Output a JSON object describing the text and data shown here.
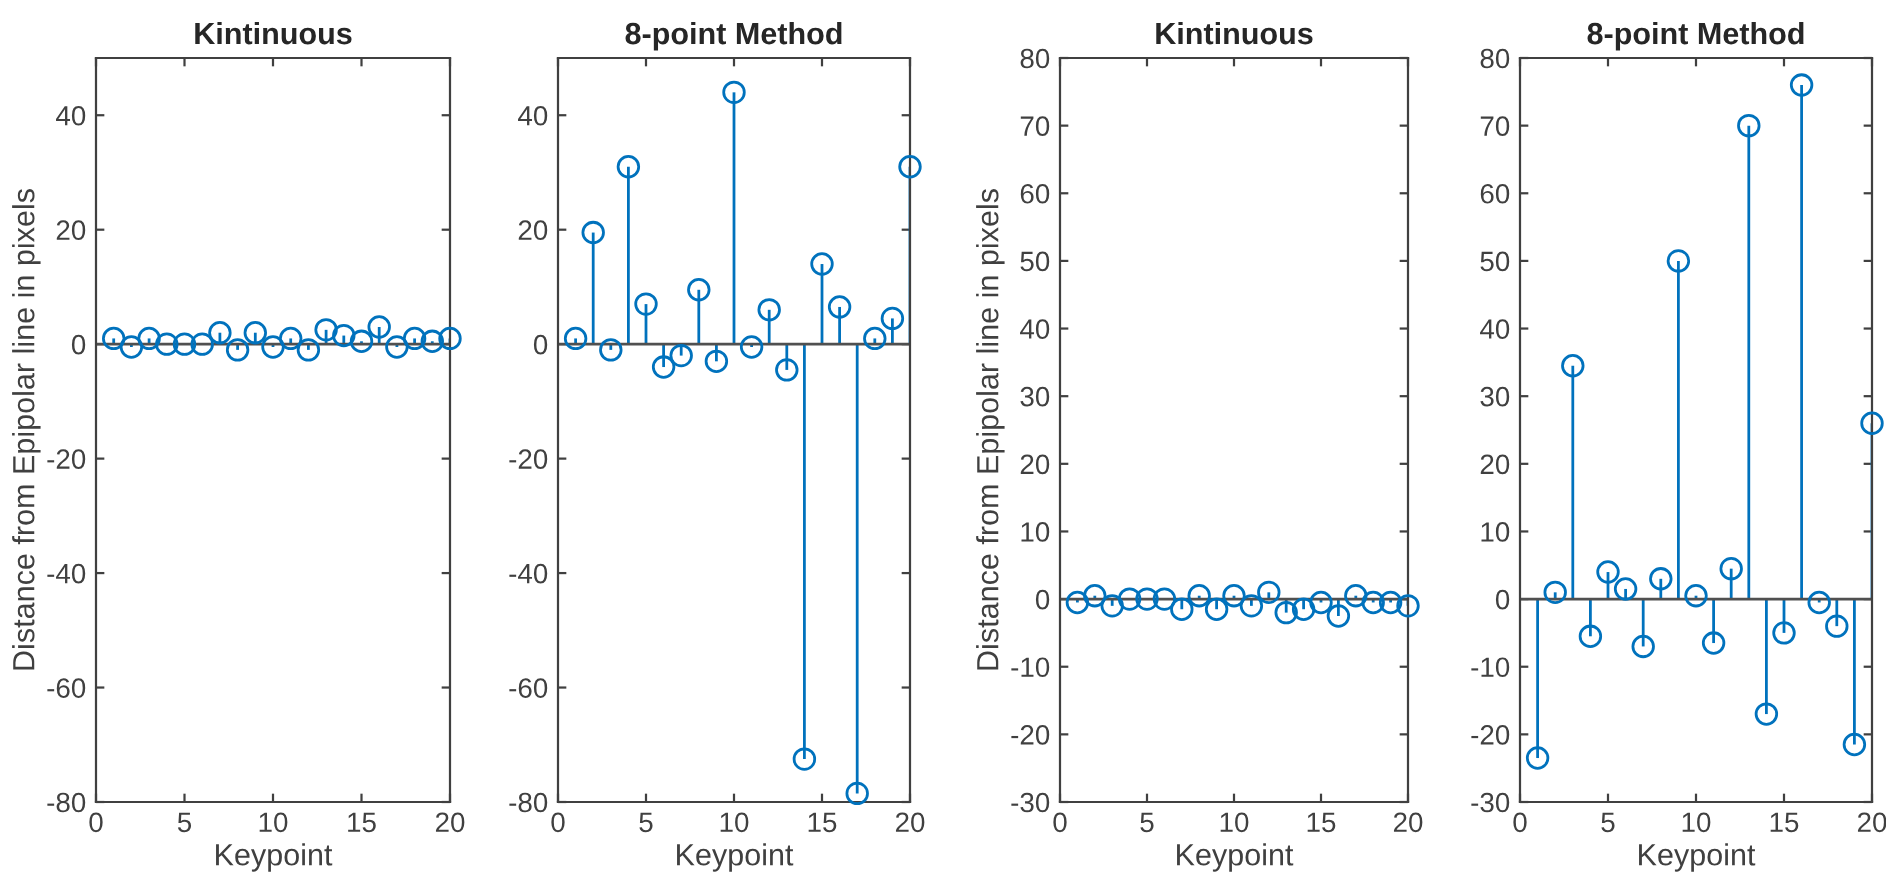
{
  "chart_data": [
    {
      "type": "lollipop",
      "title": "Kintinuous",
      "xlabel": "Keypoint",
      "ylabel": "Distance from Epipolar line in pixels",
      "marker": "circle",
      "x": [
        1,
        2,
        3,
        4,
        5,
        6,
        7,
        8,
        9,
        10,
        11,
        12,
        13,
        14,
        15,
        16,
        17,
        18,
        19,
        20
      ],
      "series": [
        {
          "color": "#0072bd",
          "values": [
            1,
            -0.5,
            1,
            0,
            0,
            0,
            2,
            -1,
            2,
            -0.5,
            1,
            -1,
            2.5,
            1.5,
            0.5,
            3,
            -0.5,
            1,
            0.5,
            1
          ]
        }
      ],
      "xlim": [
        0,
        20
      ],
      "xticks": [
        0,
        5,
        10,
        15,
        20
      ],
      "ylim": [
        -80,
        50
      ],
      "yticks": [
        -80,
        -60,
        -40,
        -20,
        0,
        20,
        40
      ]
    },
    {
      "type": "lollipop",
      "title": "8-point Method",
      "xlabel": "Keypoint",
      "marker": "circle",
      "x": [
        1,
        2,
        3,
        4,
        5,
        6,
        7,
        8,
        9,
        10,
        11,
        12,
        13,
        14,
        15,
        16,
        17,
        18,
        19,
        20
      ],
      "series": [
        {
          "color": "#0072bd",
          "values": [
            1,
            19.5,
            -1,
            31,
            7,
            -4,
            -2,
            9.5,
            -3,
            44,
            -0.5,
            6,
            -4.5,
            -72.5,
            14,
            6.5,
            -78.5,
            1,
            4.5,
            31
          ]
        }
      ],
      "xlim": [
        0,
        20
      ],
      "xticks": [
        0,
        5,
        10,
        15,
        20
      ],
      "ylim": [
        -80,
        50
      ],
      "yticks": [
        -80,
        -60,
        -40,
        -20,
        0,
        20,
        40
      ]
    },
    {
      "type": "lollipop",
      "title": "Kintinuous",
      "xlabel": "Keypoint",
      "ylabel": "Distance from Epipolar line in pixels",
      "marker": "circle",
      "x": [
        1,
        2,
        3,
        4,
        5,
        6,
        7,
        8,
        9,
        10,
        11,
        12,
        13,
        14,
        15,
        16,
        17,
        18,
        19,
        20
      ],
      "series": [
        {
          "color": "#0072bd",
          "values": [
            -0.5,
            0.5,
            -1,
            0,
            0,
            0,
            -1.5,
            0.5,
            -1.5,
            0.5,
            -1,
            1,
            -2,
            -1.5,
            -0.5,
            -2.5,
            0.5,
            -0.5,
            -0.5,
            -1
          ]
        }
      ],
      "xlim": [
        0,
        20
      ],
      "xticks": [
        0,
        5,
        10,
        15,
        20
      ],
      "ylim": [
        -30,
        80
      ],
      "yticks": [
        -30,
        -20,
        -10,
        0,
        10,
        20,
        30,
        40,
        50,
        60,
        70,
        80
      ]
    },
    {
      "type": "lollipop",
      "title": "8-point Method",
      "xlabel": "Keypoint",
      "marker": "circle",
      "x": [
        1,
        2,
        3,
        4,
        5,
        6,
        7,
        8,
        9,
        10,
        11,
        12,
        13,
        14,
        15,
        16,
        17,
        18,
        19,
        20
      ],
      "series": [
        {
          "color": "#0072bd",
          "values": [
            -23.5,
            1,
            34.5,
            -5.5,
            4,
            1.5,
            -7,
            3,
            50,
            0.5,
            -6.5,
            4.5,
            70,
            -17,
            -5,
            76,
            -0.5,
            -4,
            -21.5,
            26
          ]
        }
      ],
      "xlim": [
        0,
        20
      ],
      "xticks": [
        0,
        5,
        10,
        15,
        20
      ],
      "ylim": [
        -30,
        80
      ],
      "yticks": [
        -30,
        -20,
        -10,
        0,
        10,
        20,
        30,
        40,
        50,
        60,
        70,
        80
      ]
    }
  ]
}
